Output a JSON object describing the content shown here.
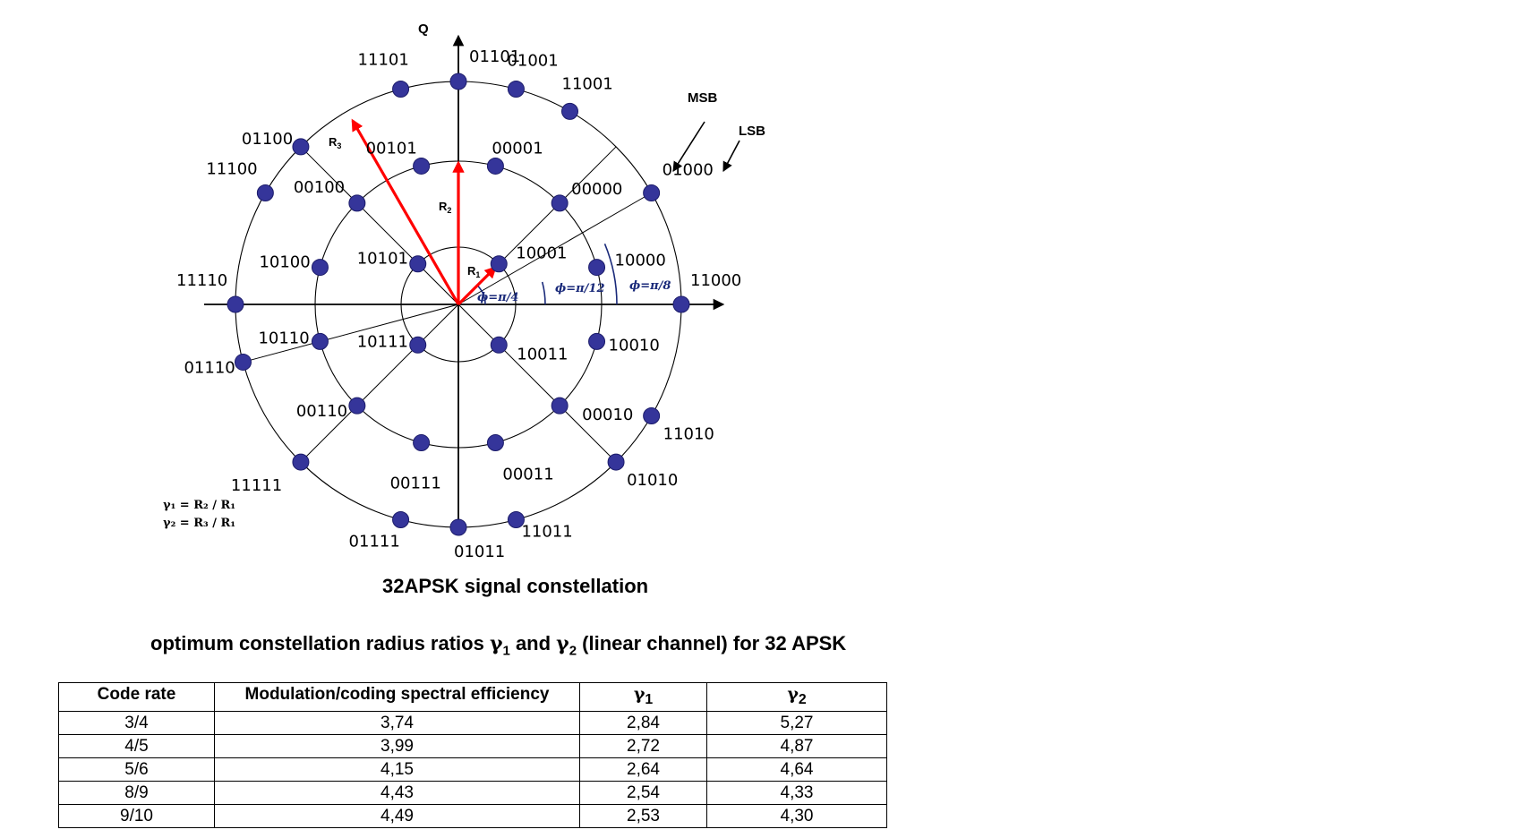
{
  "diagram": {
    "axis_q_label": "Q",
    "points": {
      "inner": [
        {
          "label": "10001",
          "angle_deg": 45
        },
        {
          "label": "10101",
          "angle_deg": 135
        },
        {
          "label": "10111",
          "angle_deg": 225
        },
        {
          "label": "10011",
          "angle_deg": 315
        }
      ],
      "middle": [
        {
          "label": "10000",
          "angle_deg": 15
        },
        {
          "label": "00000",
          "angle_deg": 45
        },
        {
          "label": "00001",
          "angle_deg": 75
        },
        {
          "label": "00101",
          "angle_deg": 105
        },
        {
          "label": "00100",
          "angle_deg": 135
        },
        {
          "label": "10100",
          "angle_deg": 165
        },
        {
          "label": "10110",
          "angle_deg": 195
        },
        {
          "label": "00110",
          "angle_deg": 225
        },
        {
          "label": "00111",
          "angle_deg": 255
        },
        {
          "label": "00011",
          "angle_deg": 285
        },
        {
          "label": "00010",
          "angle_deg": 315
        },
        {
          "label": "10010",
          "angle_deg": 345
        }
      ],
      "outer": [
        {
          "label": "11000",
          "angle_deg": 0
        },
        {
          "label": "01000",
          "angle_deg": 30
        },
        {
          "label": "11001",
          "angle_deg": 60
        },
        {
          "label": "01001",
          "angle_deg": 75
        },
        {
          "label": "01101",
          "angle_deg": 90
        },
        {
          "label": "11101",
          "angle_deg": 105
        },
        {
          "label": "01100",
          "angle_deg": 135
        },
        {
          "label": "11100",
          "angle_deg": 150
        },
        {
          "label": "11110",
          "angle_deg": 180
        },
        {
          "label": "01110",
          "angle_deg": 195
        },
        {
          "label": "11111",
          "angle_deg": 225
        },
        {
          "label": "01111",
          "angle_deg": 255
        },
        {
          "label": "01011",
          "angle_deg": 270
        },
        {
          "label": "11011",
          "angle_deg": 285
        },
        {
          "label": "01010",
          "angle_deg": 315
        },
        {
          "label": "11010",
          "angle_deg": 330
        }
      ]
    },
    "radius_labels": {
      "r1": "R",
      "r1_sub": "1",
      "r2": "R",
      "r2_sub": "2",
      "r3": "R",
      "r3_sub": "3"
    },
    "phase_labels": {
      "inner": "ϕ=π/4",
      "middle": "ϕ=π/12",
      "outer": "ϕ=π/8"
    },
    "msb_label": "MSB",
    "lsb_label": "LSB",
    "formula": {
      "line1": "γ₁ = R₂ / R₁",
      "line2": "γ₂ = R₃ / R₁"
    },
    "colors": {
      "point_fill": "#35359a",
      "arrow": "#ff0000",
      "phase_arc": "#1a2a7a"
    }
  },
  "figure_caption": "32APSK signal constellation",
  "table_caption": {
    "before": "optimum constellation radius ratios ",
    "gamma": "γ",
    "sub1": "1",
    "and": " and ",
    "sub2": "2",
    "after": " (linear channel) for 32 APSK"
  },
  "table": {
    "headers": {
      "code_rate": "Code rate",
      "efficiency": "Modulation/coding spectral efficiency",
      "gamma1": "γ",
      "gamma1_sub": "1",
      "gamma2": "γ",
      "gamma2_sub": "2"
    },
    "rows": [
      {
        "code_rate": "3/4",
        "efficiency": "3,74",
        "gamma1": "2,84",
        "gamma2": "5,27"
      },
      {
        "code_rate": "4/5",
        "efficiency": "3,99",
        "gamma1": "2,72",
        "gamma2": "4,87"
      },
      {
        "code_rate": "5/6",
        "efficiency": "4,15",
        "gamma1": "2,64",
        "gamma2": "4,64"
      },
      {
        "code_rate": "8/9",
        "efficiency": "4,43",
        "gamma1": "2,54",
        "gamma2": "4,33"
      },
      {
        "code_rate": "9/10",
        "efficiency": "4,49",
        "gamma1": "2,53",
        "gamma2": "4,30"
      }
    ]
  }
}
